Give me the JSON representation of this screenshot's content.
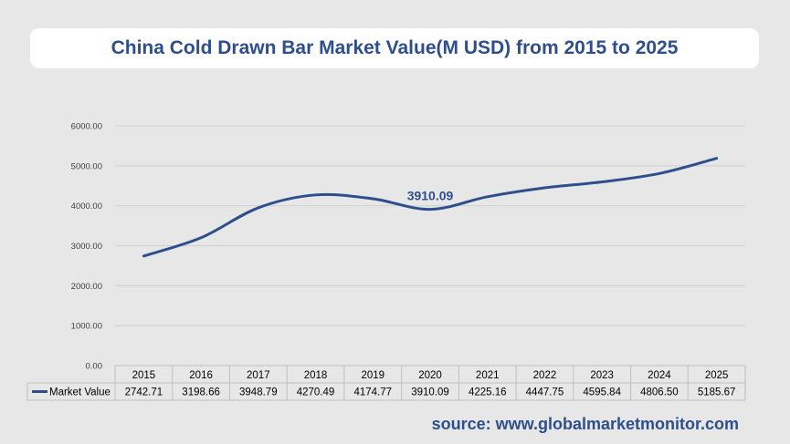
{
  "title": "China Cold Drawn Bar Market Value(M USD) from 2015 to 2025",
  "source": "source: www.globalmarketmonitor.com",
  "colors": {
    "line": "#2e4f8c",
    "title": "#2e4f8c",
    "grid": "#d0d0d0",
    "background": "#e7e7e7"
  },
  "chart_data": {
    "type": "line",
    "title": "China Cold Drawn Bar Market Value(M USD) from 2015 to 2025",
    "categories": [
      "2015",
      "2016",
      "2017",
      "2018",
      "2019",
      "2020",
      "2021",
      "2022",
      "2023",
      "2024",
      "2025"
    ],
    "series": [
      {
        "name": "Market Value",
        "values": [
          2742.71,
          3198.66,
          3948.79,
          4270.49,
          4174.77,
          3910.09,
          4225.16,
          4447.75,
          4595.84,
          4806.5,
          5185.67
        ],
        "value_labels": [
          "2742.71",
          "3198.66",
          "3948.79",
          "4270.49",
          "4174.77",
          "3910.09",
          "4225.16",
          "4447.75",
          "4595.84",
          "4806.50",
          "5185.67"
        ]
      }
    ],
    "yticks": [
      "0.00",
      "1000.00",
      "2000.00",
      "3000.00",
      "4000.00",
      "5000.00",
      "6000.00"
    ],
    "ylim": [
      0,
      6000
    ],
    "grid": true,
    "data_table": true,
    "annotation": {
      "category": "2020",
      "text": "3910.09"
    }
  }
}
